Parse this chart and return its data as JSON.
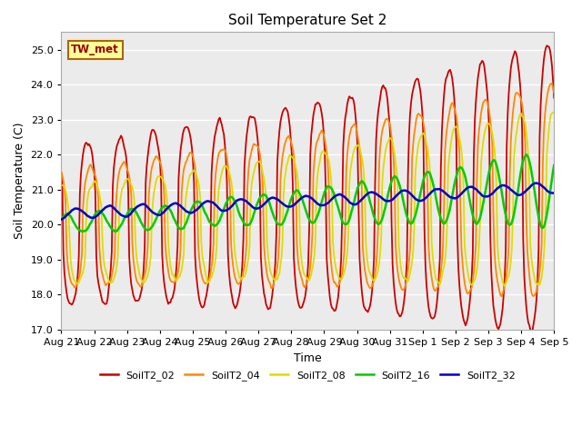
{
  "title": "Soil Temperature Set 2",
  "xlabel": "Time",
  "ylabel": "Soil Temperature (C)",
  "ylim": [
    17.0,
    25.5
  ],
  "yticks": [
    17.0,
    18.0,
    19.0,
    20.0,
    21.0,
    22.0,
    23.0,
    24.0,
    25.0
  ],
  "bg_color": "#ebebeb",
  "fig_color": "#ffffff",
  "legend_label": "TW_met",
  "legend_bg": "#ffff99",
  "legend_edge": "#aa6600",
  "legend_text_color": "#990000",
  "series_colors": {
    "SoilT2_02": "#cc0000",
    "SoilT2_04": "#ff8800",
    "SoilT2_08": "#dddd00",
    "SoilT2_16": "#00cc00",
    "SoilT2_32": "#0000cc"
  },
  "series_linewidths": {
    "SoilT2_02": 1.3,
    "SoilT2_04": 1.3,
    "SoilT2_08": 1.3,
    "SoilT2_16": 1.8,
    "SoilT2_32": 1.8
  },
  "n_points": 480,
  "start_day": 0,
  "end_day": 15,
  "x_tick_days": [
    0,
    1,
    2,
    3,
    4,
    5,
    6,
    7,
    8,
    9,
    10,
    11,
    12,
    13,
    14,
    15
  ],
  "x_tick_labels": [
    "Aug 21",
    "Aug 22",
    "Aug 23",
    "Aug 24",
    "Aug 25",
    "Aug 26",
    "Aug 27",
    "Aug 28",
    "Aug 29",
    "Aug 30",
    "Aug 31",
    "Sep 1",
    "Sep 2",
    "Sep 3",
    "Sep 4",
    "Sep 5"
  ]
}
